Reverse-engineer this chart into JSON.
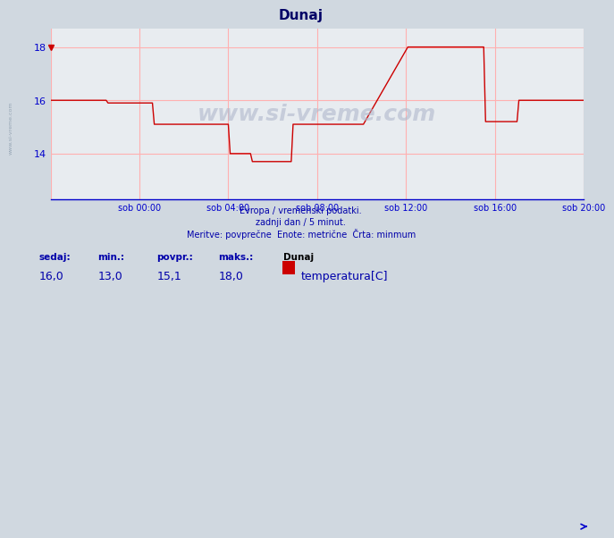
{
  "title": "Dunaj",
  "bg_color": "#d0d8e0",
  "plot_bg_color": "#e8ecf0",
  "grid_color": "#ffb0b0",
  "line_color": "#cc0000",
  "axis_color": "#0000cc",
  "text_color": "#0000aa",
  "subtitle_lines": [
    "Evropa / vremenski podatki.",
    "zadnji dan / 5 minut.",
    "Meritve: povprečne  Enote: metrične  Črta: minmum"
  ],
  "footer_labels": [
    "sedaj:",
    "min.:",
    "povpr.:",
    "maks.:",
    "Dunaj"
  ],
  "footer_values": [
    "16,0",
    "13,0",
    "15,1",
    "18,0"
  ],
  "legend_label": "temperatura[C]",
  "legend_color": "#cc0000",
  "xlabel_ticks_pos": [
    48,
    96,
    144,
    192,
    240,
    288
  ],
  "xlabel_ticks_labels": [
    "sob 00:00",
    "sob 04:00",
    "sob 08:00",
    "sob 12:00",
    "sob 16:00",
    "sob 20:00"
  ],
  "yticks": [
    14,
    16,
    18
  ],
  "ylim": [
    12.3,
    18.7
  ],
  "xlim": [
    0,
    288
  ],
  "watermark": "www.si-vreme.com",
  "x_data": [
    0,
    30,
    31,
    55,
    56,
    96,
    97,
    108,
    109,
    130,
    131,
    168,
    169,
    193,
    194,
    234,
    235,
    252,
    253,
    270,
    271,
    288
  ],
  "y_data": [
    16.0,
    16.0,
    15.9,
    15.9,
    15.1,
    15.1,
    14.0,
    14.0,
    13.7,
    13.7,
    15.1,
    15.1,
    15.1,
    18.0,
    18.0,
    18.0,
    15.2,
    15.2,
    16.0,
    16.0,
    16.0,
    16.0
  ]
}
